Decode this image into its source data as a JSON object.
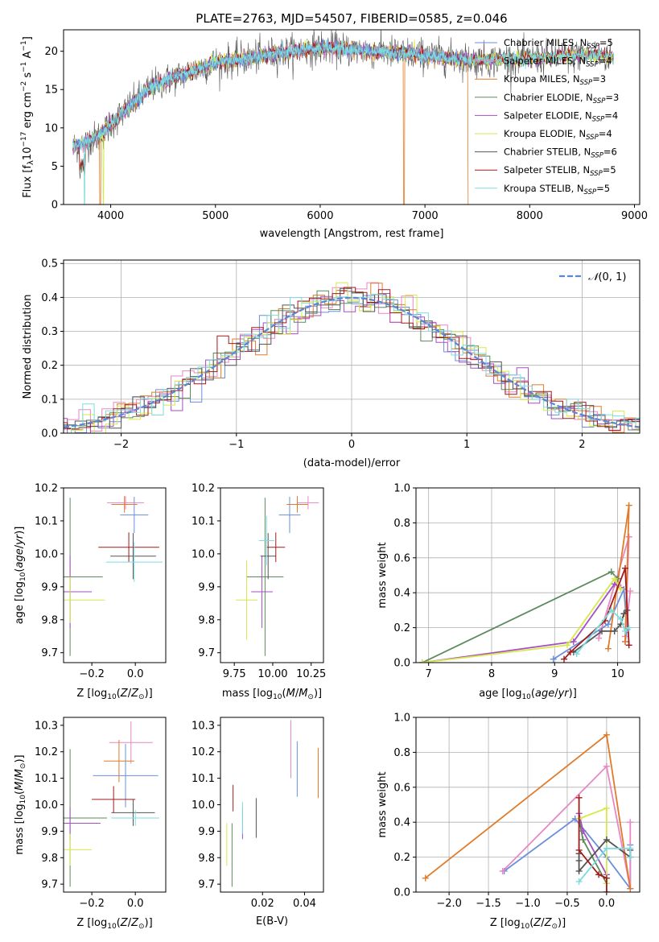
{
  "title": "PLATE=2763, MJD=54507, FIBERID=0585, z=0.046",
  "colors": {
    "Chabrier MILES": "#6a8fdc",
    "Salpeter MILES": "#e887c4",
    "Kroupa MILES": "#e07b2a",
    "Chabrier ELODIE": "#5c8a5c",
    "Salpeter ELODIE": "#a64fc0",
    "Kroupa ELODIE": "#d7e84a",
    "Chabrier STELIB": "#555555",
    "Salpeter STELIB": "#a31a1a",
    "Kroupa STELIB": "#7edbe0"
  },
  "chart_data": [
    {
      "id": "spectrum",
      "type": "line",
      "title": "PLATE=2763, MJD=54507, FIBERID=0585, z=0.046",
      "xlabel": "wavelength [Angstrom, rest frame]",
      "ylabel": "Flux [f_λ 10^-17 erg cm^-2 s^-1 A^-1]",
      "xlim": [
        3550,
        9050
      ],
      "ylim": [
        0,
        22.8
      ],
      "xticks": [
        4000,
        5000,
        6000,
        7000,
        8000,
        9000
      ],
      "yticks": [
        0,
        5,
        10,
        15,
        20
      ],
      "grid": false,
      "legend_position": "right",
      "legend": [
        {
          "label": "Chabrier MILES, N",
          "sub": "SSP",
          "suffix": "=5"
        },
        {
          "label": "Salpeter MILES, N",
          "sub": "SSP",
          "suffix": "=4"
        },
        {
          "label": "Kroupa MILES, N",
          "sub": "SSP",
          "suffix": "=3"
        },
        {
          "label": "Chabrier ELODIE, N",
          "sub": "SSP",
          "suffix": "=3"
        },
        {
          "label": "Salpeter ELODIE, N",
          "sub": "SSP",
          "suffix": "=4"
        },
        {
          "label": "Kroupa ELODIE, N",
          "sub": "SSP",
          "suffix": "=4"
        },
        {
          "label": "Chabrier STELIB, N",
          "sub": "SSP",
          "suffix": "=6"
        },
        {
          "label": "Salpeter STELIB, N",
          "sub": "SSP",
          "suffix": "=5"
        },
        {
          "label": "Kroupa STELIB, N",
          "sub": "SSP",
          "suffix": "=5"
        }
      ],
      "continuum_anchors": [
        [
          3640,
          7.5
        ],
        [
          3900,
          9.0
        ],
        [
          4000,
          10.5
        ],
        [
          4200,
          13.0
        ],
        [
          4400,
          15.5
        ],
        [
          4700,
          17.0
        ],
        [
          5000,
          18.5
        ],
        [
          5500,
          19.5
        ],
        [
          6000,
          20.5
        ],
        [
          6500,
          20.0
        ],
        [
          7000,
          19.5
        ],
        [
          7500,
          18.8
        ],
        [
          8000,
          19.0
        ],
        [
          8500,
          19.5
        ],
        [
          8800,
          19.3
        ]
      ],
      "drop_features": [
        [
          3750,
          0.0
        ],
        [
          3930,
          0.0
        ],
        [
          6800,
          0.0
        ],
        [
          7420,
          0.0
        ]
      ]
    },
    {
      "id": "residuals",
      "type": "histogram",
      "xlabel": "(data-model)/error",
      "ylabel": "Normed distribution",
      "xlim": [
        -2.5,
        2.5
      ],
      "ylim": [
        0,
        0.51
      ],
      "xticks": [
        -2,
        -1,
        0,
        1,
        2
      ],
      "yticks": [
        0.0,
        0.1,
        0.2,
        0.3,
        0.4,
        0.5
      ],
      "grid": true,
      "legend_position": "top-right",
      "legend_label": "N(0,1)",
      "bin_width": 0.1,
      "reference_curve": "normal(0,1)"
    },
    {
      "id": "age_vs_Z",
      "type": "errorbar",
      "xlabel": "Z [log10(Z/Z⊙)]",
      "ylabel": "age  [log10(age/yr)]",
      "xlim": [
        -0.33,
        0.14
      ],
      "ylim": [
        9.67,
        10.2
      ],
      "xticks": [
        -0.2,
        0.0
      ],
      "xtick_labels": [
        "−0.2",
        "0.0"
      ],
      "yticks": [
        9.7,
        9.8,
        9.9,
        10.0,
        10.1,
        10.2
      ],
      "points": [
        {
          "model": "Chabrier MILES",
          "x": -0.005,
          "xerr": 0.065,
          "y": 10.118,
          "yerr": 0.055
        },
        {
          "model": "Salpeter MILES",
          "x": -0.045,
          "xerr": 0.085,
          "y": 10.155,
          "yerr": 0.02
        },
        {
          "model": "Kroupa MILES",
          "x": -0.05,
          "xerr": 0.06,
          "y": 10.15,
          "yerr": 0.025
        },
        {
          "model": "Chabrier ELODIE",
          "x": -0.3,
          "xerr": 0.15,
          "y": 9.93,
          "yerr": 0.24
        },
        {
          "model": "Salpeter ELODIE",
          "x": -0.3,
          "xerr": 0.1,
          "y": 9.885,
          "yerr": 0.11
        },
        {
          "model": "Kroupa ELODIE",
          "x": -0.3,
          "xerr": 0.16,
          "y": 9.86,
          "yerr": 0.07
        },
        {
          "model": "Chabrier STELIB",
          "x": -0.01,
          "xerr": 0.105,
          "y": 9.993,
          "yerr": 0.07
        },
        {
          "model": "Salpeter STELIB",
          "x": -0.03,
          "xerr": 0.14,
          "y": 10.02,
          "yerr": 0.045
        },
        {
          "model": "Kroupa STELIB",
          "x": -0.005,
          "xerr": 0.13,
          "y": 9.975,
          "yerr": 0.06
        }
      ]
    },
    {
      "id": "age_vs_mass",
      "type": "errorbar",
      "xlabel": "mass [log10(M/M⊙)]",
      "ylabel": "",
      "xlim": [
        9.66,
        10.33
      ],
      "ylim": [
        9.67,
        10.2
      ],
      "xticks": [
        9.75,
        10.0,
        10.25
      ],
      "xtick_labels": [
        "9.75",
        "10.00",
        "10.25"
      ],
      "yticks": [
        9.7,
        9.8,
        9.9,
        10.0,
        10.1,
        10.2
      ],
      "points": [
        {
          "model": "Chabrier MILES",
          "x": 10.11,
          "xerr": 0.07,
          "y": 10.118,
          "yerr": 0.055
        },
        {
          "model": "Salpeter MILES",
          "x": 10.23,
          "xerr": 0.07,
          "y": 10.155,
          "yerr": 0.02
        },
        {
          "model": "Kroupa MILES",
          "x": 10.16,
          "xerr": 0.07,
          "y": 10.15,
          "yerr": 0.025
        },
        {
          "model": "Chabrier ELODIE",
          "x": 9.95,
          "xerr": 0.12,
          "y": 9.93,
          "yerr": 0.24
        },
        {
          "model": "Salpeter ELODIE",
          "x": 9.93,
          "xerr": 0.07,
          "y": 9.885,
          "yerr": 0.11
        },
        {
          "model": "Kroupa ELODIE",
          "x": 9.83,
          "xerr": 0.07,
          "y": 9.86,
          "yerr": 0.12
        },
        {
          "model": "Chabrier STELIB",
          "x": 9.97,
          "xerr": 0.05,
          "y": 9.993,
          "yerr": 0.07
        },
        {
          "model": "Salpeter STELIB",
          "x": 10.02,
          "xerr": 0.06,
          "y": 10.02,
          "yerr": 0.045
        },
        {
          "model": "Kroupa STELIB",
          "x": 9.96,
          "xerr": 0.05,
          "y": 10.04,
          "yerr": 0.075
        }
      ]
    },
    {
      "id": "mass_weight_vs_age",
      "type": "line",
      "xlabel": "age  [log10(age/yr)]",
      "ylabel": "mass weight",
      "xlim": [
        6.8,
        10.35
      ],
      "ylim": [
        0,
        1.0
      ],
      "xticks": [
        7,
        8,
        9,
        10
      ],
      "yticks": [
        0.0,
        0.2,
        0.4,
        0.6,
        0.8,
        1.0
      ],
      "grid": true,
      "series": [
        {
          "model": "Chabrier MILES",
          "x": [
            8.98,
            9.85,
            10.1,
            10.15,
            10.12
          ],
          "y": [
            0.02,
            0.22,
            0.42,
            0.19,
            0.12
          ]
        },
        {
          "model": "Salpeter MILES",
          "x": [
            9.7,
            10.18,
            10.12,
            10.2
          ],
          "y": [
            0.14,
            0.72,
            0.15,
            0.41
          ]
        },
        {
          "model": "Kroupa MILES",
          "x": [
            9.85,
            10.18,
            10.12
          ],
          "y": [
            0.08,
            0.9,
            0.12
          ]
        },
        {
          "model": "Chabrier ELODIE",
          "x": [
            6.9,
            9.9,
            10.0
          ],
          "y": [
            0.0,
            0.52,
            0.48
          ]
        },
        {
          "model": "Salpeter ELODIE",
          "x": [
            6.9,
            9.3,
            9.95,
            10.05
          ],
          "y": [
            0.0,
            0.12,
            0.45,
            0.43
          ]
        },
        {
          "model": "Kroupa ELODIE",
          "x": [
            6.9,
            9.2,
            9.95,
            10.05
          ],
          "y": [
            0.0,
            0.1,
            0.48,
            0.42
          ]
        },
        {
          "model": "Chabrier STELIB",
          "x": [
            9.3,
            9.75,
            9.95,
            10.05,
            10.1,
            10.15
          ],
          "y": [
            0.06,
            0.18,
            0.18,
            0.22,
            0.28,
            0.3
          ]
        },
        {
          "model": "Salpeter STELIB",
          "x": [
            9.15,
            9.25,
            9.8,
            10.12,
            10.18
          ],
          "y": [
            0.02,
            0.06,
            0.24,
            0.54,
            0.1
          ]
        },
        {
          "model": "Kroupa STELIB",
          "x": [
            9.35,
            9.9,
            10.05,
            10.12,
            10.18
          ],
          "y": [
            0.05,
            0.3,
            0.25,
            0.18,
            0.2
          ]
        }
      ]
    },
    {
      "id": "mass_vs_Z",
      "type": "errorbar",
      "xlabel": "Z [log10(Z/Z⊙)]",
      "ylabel": "mass [log10(M/M⊙)]",
      "xlim": [
        -0.33,
        0.14
      ],
      "ylim": [
        9.67,
        10.33
      ],
      "xticks": [
        -0.2,
        0.0
      ],
      "xtick_labels": [
        "−0.2",
        "0.0"
      ],
      "yticks": [
        9.7,
        9.8,
        9.9,
        10.0,
        10.1,
        10.2,
        10.3
      ],
      "points": [
        {
          "model": "Chabrier MILES",
          "x": -0.045,
          "xerr": 0.15,
          "y": 10.11,
          "yerr": 0.12
        },
        {
          "model": "Salpeter MILES",
          "x": -0.02,
          "xerr": 0.1,
          "y": 10.235,
          "yerr": 0.08
        },
        {
          "model": "Kroupa MILES",
          "x": -0.075,
          "xerr": 0.07,
          "y": 10.165,
          "yerr": 0.08
        },
        {
          "model": "Chabrier ELODIE",
          "x": -0.3,
          "xerr": 0.17,
          "y": 9.95,
          "yerr": 0.26
        },
        {
          "model": "Salpeter ELODIE",
          "x": -0.3,
          "xerr": 0.14,
          "y": 9.93,
          "yerr": 0.06
        },
        {
          "model": "Kroupa ELODIE",
          "x": -0.3,
          "xerr": 0.1,
          "y": 9.83,
          "yerr": 0.06
        },
        {
          "model": "Chabrier STELIB",
          "x": -0.01,
          "xerr": 0.1,
          "y": 9.97,
          "yerr": 0.05
        },
        {
          "model": "Salpeter STELIB",
          "x": -0.1,
          "xerr": 0.1,
          "y": 10.02,
          "yerr": 0.05
        },
        {
          "model": "Kroupa STELIB",
          "x": 0.0,
          "xerr": 0.11,
          "y": 9.95,
          "yerr": 0.03
        }
      ]
    },
    {
      "id": "mass_vs_ebv",
      "type": "errorbar",
      "xlabel": "E(B-V)",
      "ylabel": "",
      "xlim": [
        0.0,
        0.049
      ],
      "ylim": [
        9.67,
        10.33
      ],
      "xticks": [
        0.02,
        0.04
      ],
      "xtick_labels": [
        "0.02",
        "0.04"
      ],
      "yticks": [
        9.7,
        9.8,
        9.9,
        10.0,
        10.1,
        10.2,
        10.3
      ],
      "points": [
        {
          "model": "Chabrier MILES",
          "x": 0.0365,
          "xerr": 0.0,
          "y": 10.135,
          "yerr": 0.105
        },
        {
          "model": "Salpeter MILES",
          "x": 0.0335,
          "xerr": 0.0,
          "y": 10.21,
          "yerr": 0.11
        },
        {
          "model": "Kroupa MILES",
          "x": 0.0465,
          "xerr": 0.0,
          "y": 10.12,
          "yerr": 0.095
        },
        {
          "model": "Chabrier ELODIE",
          "x": 0.0055,
          "xerr": 0.0,
          "y": 9.81,
          "yerr": 0.12
        },
        {
          "model": "Salpeter ELODIE",
          "x": 0.0105,
          "xerr": 0.0,
          "y": 9.93,
          "yerr": 0.06
        },
        {
          "model": "Kroupa ELODIE",
          "x": 0.003,
          "xerr": 0.0,
          "y": 9.85,
          "yerr": 0.08
        },
        {
          "model": "Chabrier STELIB",
          "x": 0.017,
          "xerr": 0.0,
          "y": 9.95,
          "yerr": 0.075
        },
        {
          "model": "Salpeter STELIB",
          "x": 0.006,
          "xerr": 0.0,
          "y": 10.025,
          "yerr": 0.05
        },
        {
          "model": "Kroupa STELIB",
          "x": 0.0105,
          "xerr": 0.0,
          "y": 9.95,
          "yerr": 0.06
        }
      ]
    },
    {
      "id": "mass_weight_vs_Z",
      "type": "line",
      "xlabel": "Z [log10(Z/Z⊙)]",
      "ylabel": "mass weight",
      "xlim": [
        -2.42,
        0.42
      ],
      "ylim": [
        0,
        1.0
      ],
      "xticks": [
        -2.0,
        -1.5,
        -1.0,
        -0.5,
        0.0
      ],
      "xtick_labels": [
        "−2.0",
        "−1.5",
        "−1.0",
        "−0.5",
        "0.0"
      ],
      "yticks": [
        0.0,
        0.2,
        0.4,
        0.6,
        0.8,
        1.0
      ],
      "grid": true,
      "series": [
        {
          "model": "Chabrier MILES",
          "x": [
            -1.3,
            -0.4,
            0.0,
            0.3,
            0.3
          ],
          "y": [
            0.12,
            0.42,
            0.2,
            0.02,
            0.27
          ]
        },
        {
          "model": "Salpeter MILES",
          "x": [
            -1.32,
            0.0,
            0.3,
            0.3
          ],
          "y": [
            0.12,
            0.72,
            0.02,
            0.4
          ]
        },
        {
          "model": "Kroupa MILES",
          "x": [
            -2.3,
            0.0,
            0.3
          ],
          "y": [
            0.08,
            0.9,
            0.02
          ]
        },
        {
          "model": "Chabrier ELODIE",
          "x": [
            -0.35,
            -0.3,
            0.0
          ],
          "y": [
            0.42,
            0.3,
            0.05
          ]
        },
        {
          "model": "Salpeter ELODIE",
          "x": [
            -0.35,
            -0.3,
            0.0
          ],
          "y": [
            0.45,
            0.35,
            0.1
          ]
        },
        {
          "model": "Kroupa ELODIE",
          "x": [
            -0.35,
            0.0,
            0.0
          ],
          "y": [
            0.42,
            0.48,
            0.05
          ]
        },
        {
          "model": "Chabrier STELIB",
          "x": [
            -0.35,
            -0.35,
            -0.35,
            0.0,
            0.3,
            0.3
          ],
          "y": [
            0.22,
            0.18,
            0.12,
            0.3,
            0.2,
            0.24
          ]
        },
        {
          "model": "Salpeter STELIB",
          "x": [
            -0.35,
            -0.35,
            -0.1,
            0.0,
            0.0
          ],
          "y": [
            0.54,
            0.24,
            0.1,
            0.08,
            0.0
          ]
        },
        {
          "model": "Kroupa STELIB",
          "x": [
            -0.35,
            0.0,
            0.3,
            0.3
          ],
          "y": [
            0.06,
            0.25,
            0.25,
            0.2
          ]
        }
      ]
    }
  ]
}
